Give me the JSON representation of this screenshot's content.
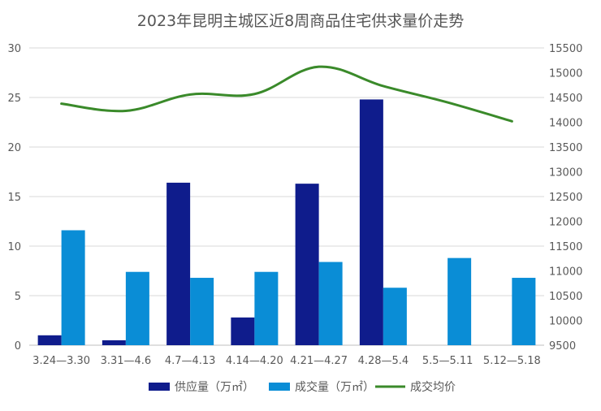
{
  "chart_data": {
    "type": "bar",
    "title": "2023年昆明主城区近8周商品住宅供求量价走势",
    "categories": [
      "3.24—3.30",
      "3.31—4.6",
      "4.7—4.13",
      "4.14—4.20",
      "4.21—4.27",
      "4.28—5.4",
      "5.5—5.11",
      "5.12—5.18"
    ],
    "series": [
      {
        "name": "供应量（万㎡）",
        "type": "bar",
        "axis": "left",
        "color": "#0F1C8C",
        "values": [
          1.0,
          0.5,
          16.4,
          2.8,
          16.3,
          24.8,
          0,
          0
        ]
      },
      {
        "name": "成交量（万㎡）",
        "type": "bar",
        "axis": "left",
        "color": "#0A8DD6",
        "values": [
          11.6,
          7.4,
          6.8,
          7.4,
          8.4,
          5.8,
          8.8,
          6.8
        ]
      },
      {
        "name": "成交均价",
        "type": "line",
        "axis": "right",
        "color": "#3A8A2A",
        "values": [
          14375,
          14230,
          14560,
          14570,
          15120,
          14730,
          14400,
          14020
        ]
      }
    ],
    "ylim_left": [
      0,
      30
    ],
    "yticks_left": [
      0,
      5,
      10,
      15,
      20,
      25,
      30
    ],
    "ylim_right": [
      9500,
      15500
    ],
    "yticks_right": [
      9500,
      10000,
      10500,
      11000,
      11500,
      12000,
      12500,
      13000,
      13500,
      14000,
      14500,
      15000,
      15500
    ],
    "grid": true,
    "legend_position": "bottom"
  }
}
